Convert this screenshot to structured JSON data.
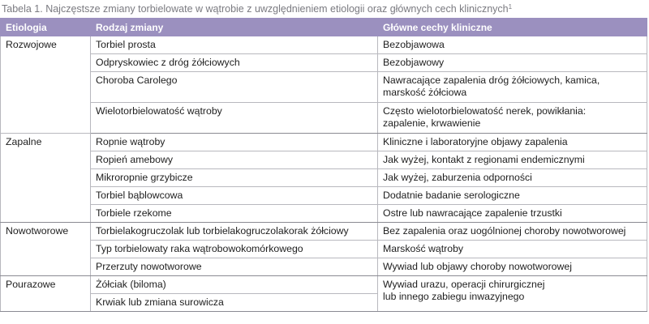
{
  "caption": "Tabela 1. Najczęstsze zmiany torbielowate w wątrobie z uwzględnieniem etiologii oraz głównych cech klinicznych",
  "caption_sup": "1",
  "headers": [
    "Etiologia",
    "Rodzaj zmiany",
    "Główne cechy kliniczne"
  ],
  "groups": [
    {
      "etiology": "Rozwojowe",
      "rows": [
        {
          "change": "Torbiel prosta",
          "features": "Bezobjawowa"
        },
        {
          "change": "Odpryskowiec z dróg żółciowych",
          "features": "Bezobjawowy"
        },
        {
          "change": "Choroba Carolego",
          "features": "Nawracające zapalenia dróg żółciowych, kamica,\nmarskość żółciowa"
        },
        {
          "change": "Wielotorbielowatość wątroby",
          "features": "Często wielotorbielowatość nerek, powikłania:\nzapalenie, krwawienie"
        }
      ]
    },
    {
      "etiology": "Zapalne",
      "rows": [
        {
          "change": "Ropnie wątroby",
          "features": "Kliniczne i laboratoryjne objawy zapalenia"
        },
        {
          "change": "Ropień amebowy",
          "features": "Jak wyżej, kontakt z regionami endemicznymi"
        },
        {
          "change": "Mikroropnie grzybicze",
          "features": "Jak wyżej, zaburzenia odporności"
        },
        {
          "change": "Torbiel bąblowcowa",
          "features": "Dodatnie badanie serologiczne"
        },
        {
          "change": "Torbiele rzekome",
          "features": "Ostre lub nawracające zapalenie trzustki"
        }
      ]
    },
    {
      "etiology": "Nowotworowe",
      "rows": [
        {
          "change": "Torbielakogruczolak lub torbielakogruczolakorak żółciowy",
          "features": "Bez zapalenia oraz uogólnionej choroby nowotworowej"
        },
        {
          "change": "Typ torbielowaty raka wątrobowokomórkowego",
          "features": "Marskość wątroby"
        },
        {
          "change": "Przerzuty nowotworowe",
          "features": "Wywiad lub objawy choroby nowotworowej"
        }
      ]
    },
    {
      "etiology": "Pourazowe",
      "rows": [
        {
          "change": "Żółciak (biloma)",
          "features": "Wywiad urazu, operacji chirurgicznej\nlub innego zabiegu inwazyjnego"
        },
        {
          "change": "Krwiak lub zmiana surowicza",
          "features": null
        }
      ]
    }
  ]
}
